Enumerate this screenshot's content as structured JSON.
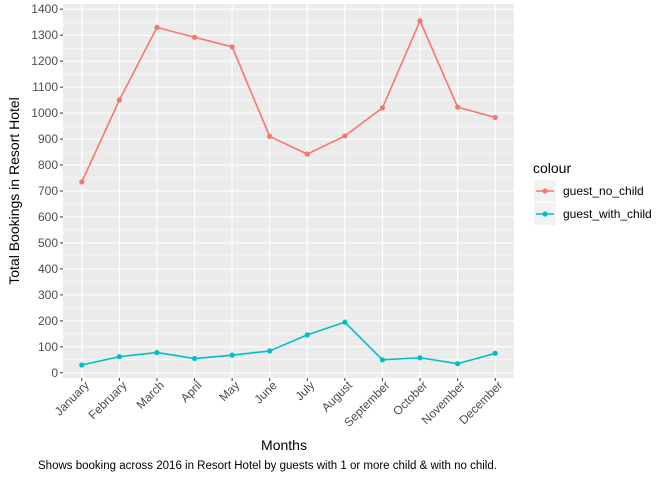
{
  "chart_data": {
    "type": "line",
    "categories": [
      "January",
      "February",
      "March",
      "April",
      "May",
      "June",
      "July",
      "August",
      "September",
      "October",
      "November",
      "December"
    ],
    "series": [
      {
        "name": "guest_no_child",
        "color": "#F8766D",
        "values": [
          735,
          1050,
          1330,
          1292,
          1255,
          910,
          842,
          912,
          1020,
          1355,
          1023,
          983
        ]
      },
      {
        "name": "guest_with_child",
        "color": "#00BFC4",
        "values": [
          30,
          62,
          78,
          55,
          68,
          84,
          146,
          195,
          50,
          58,
          35,
          75
        ]
      }
    ],
    "xlabel": "Months",
    "ylabel": "Total Bookings in Resort Hotel",
    "caption": "Shows booking across 2016 in Resort Hotel by guests with 1 or more child & with no child.",
    "legend_title": "colour",
    "legend_position": "right",
    "ylim": [
      -20,
      1420
    ],
    "yticks": [
      0,
      100,
      200,
      300,
      400,
      500,
      600,
      700,
      800,
      900,
      1000,
      1100,
      1200,
      1300,
      1400
    ],
    "grid": true,
    "panel_background": "#EBEBEB"
  }
}
